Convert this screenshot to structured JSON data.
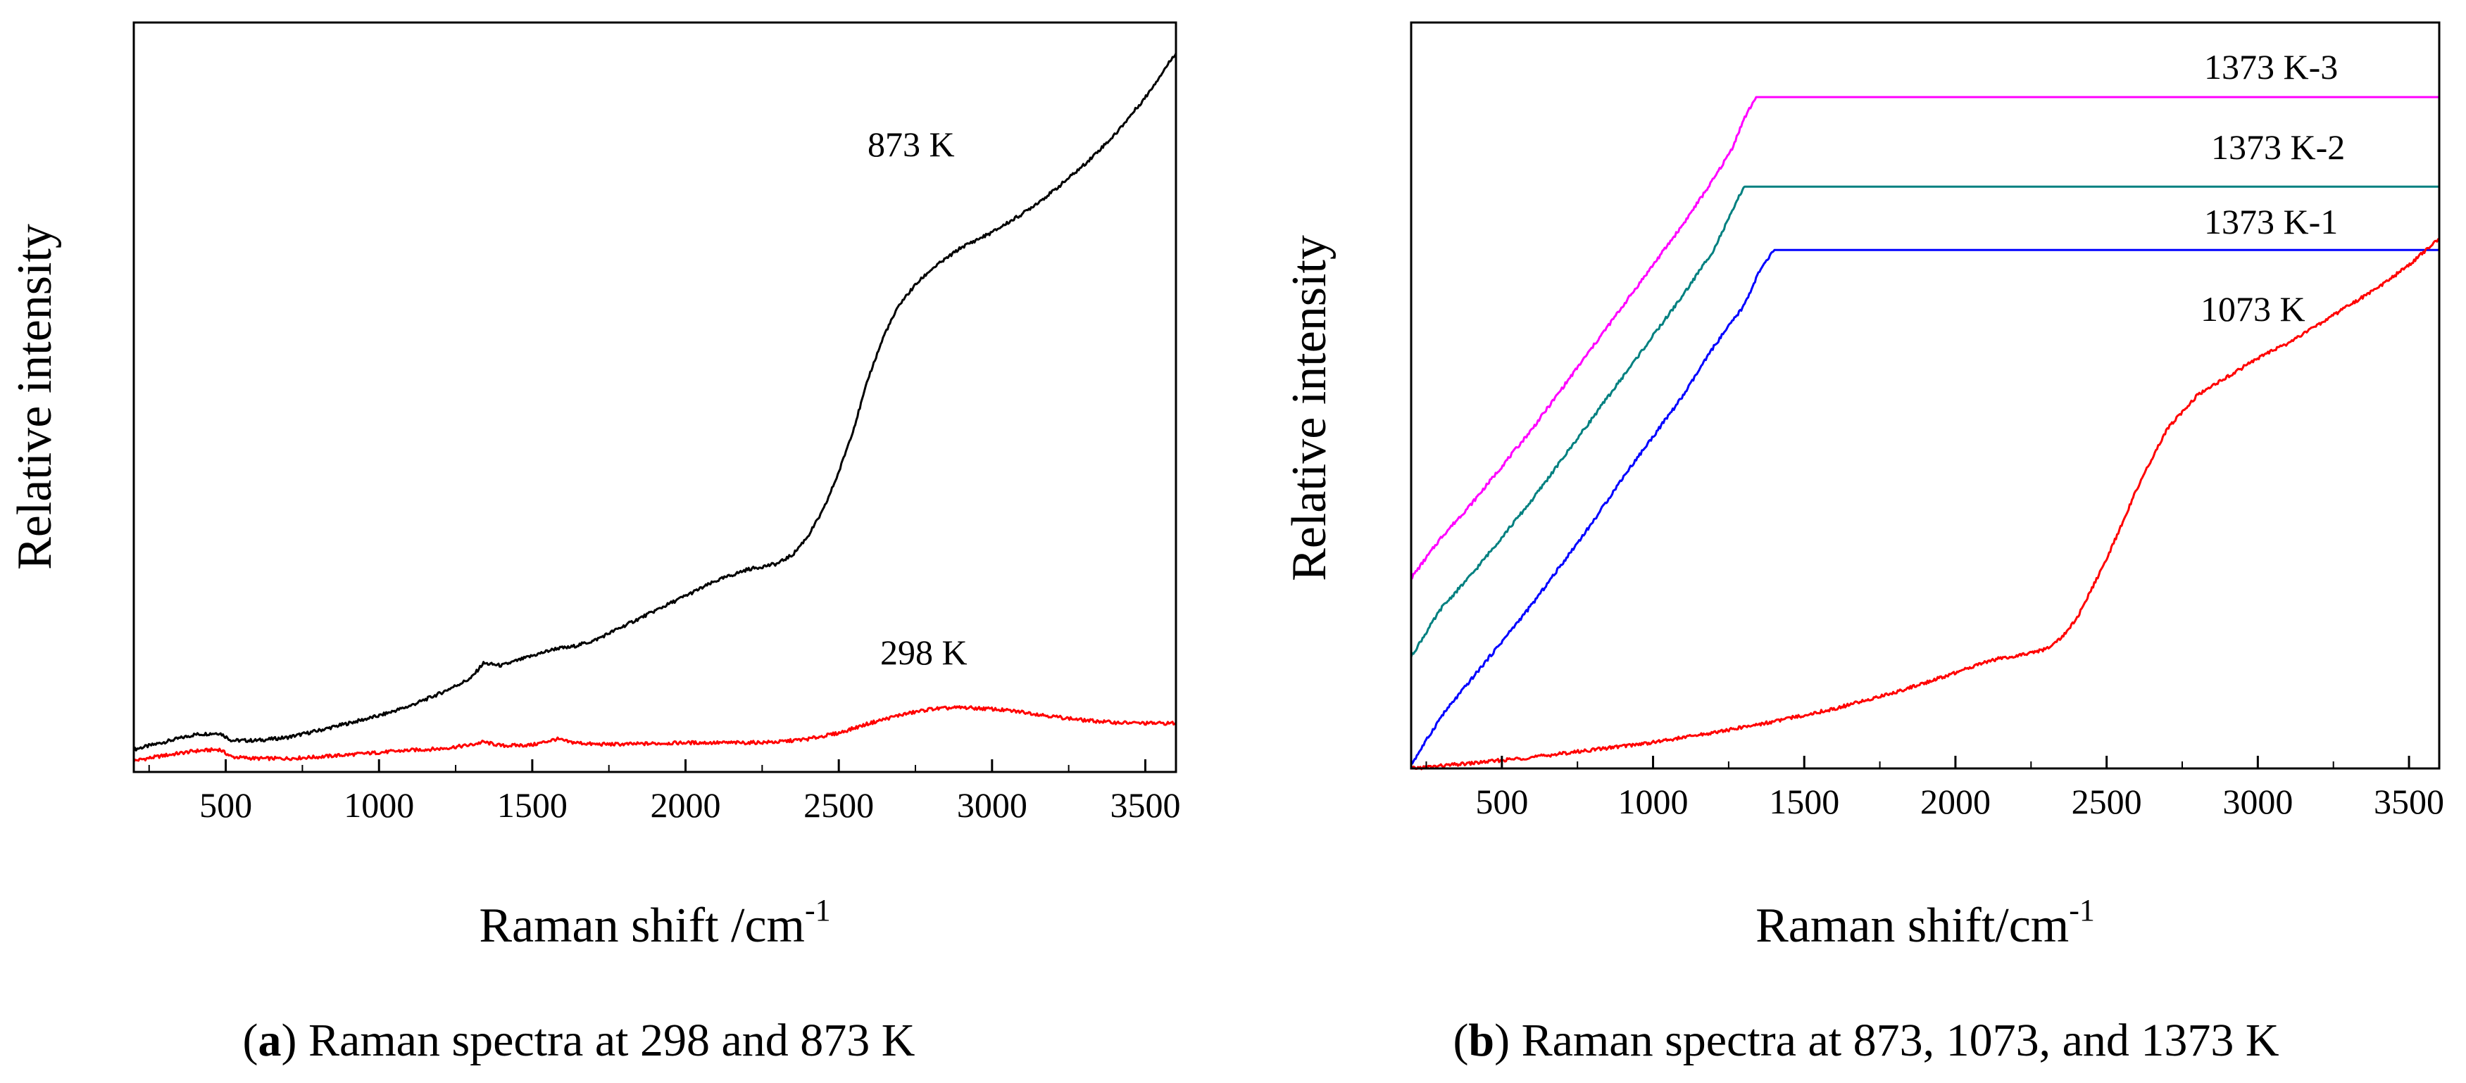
{
  "chart_data": [
    {
      "type": "line",
      "caption": {
        "letter": "a",
        "text": ") Raman spectra at 298 and 873 K"
      },
      "xlabel": "Raman shift /cm",
      "xlabel_sup": "-1",
      "ylabel": "Relative intensity",
      "xlim": [
        200,
        3600
      ],
      "ylim": [
        0,
        100
      ],
      "x_ticks": [
        500,
        1000,
        1500,
        2000,
        2500,
        3000,
        3500
      ],
      "grid": false,
      "y_tick_labels": false,
      "series": [
        {
          "name": "873 K",
          "color": "#000000",
          "x": [
            200,
            300,
            400,
            480,
            520,
            600,
            700,
            800,
            900,
            1000,
            1100,
            1200,
            1300,
            1340,
            1400,
            1500,
            1580,
            1620,
            1700,
            1800,
            1900,
            2000,
            2100,
            2200,
            2300,
            2350,
            2400,
            2450,
            2500,
            2550,
            2600,
            2650,
            2700,
            2750,
            2800,
            2850,
            2900,
            3000,
            3100,
            3200,
            3300,
            3400,
            3500,
            3600
          ],
          "y": [
            3.0,
            4.0,
            5.0,
            5.2,
            4.2,
            4.2,
            4.6,
            5.5,
            6.5,
            7.5,
            8.8,
            10.5,
            12.5,
            14.5,
            14.2,
            15.5,
            16.5,
            16.6,
            17.5,
            19.5,
            21.5,
            23.5,
            25.5,
            27.0,
            27.8,
            29.0,
            31.5,
            35.0,
            40.0,
            46.0,
            53.0,
            58.5,
            62.5,
            65.0,
            67.0,
            68.5,
            70.0,
            72.0,
            74.5,
            77.5,
            81.0,
            85.0,
            90.0,
            96.0
          ]
        },
        {
          "name": "298 K",
          "color": "#ff0000",
          "x": [
            200,
            300,
            400,
            480,
            520,
            600,
            700,
            800,
            900,
            1000,
            1100,
            1200,
            1300,
            1340,
            1400,
            1500,
            1580,
            1620,
            1700,
            1800,
            1900,
            2000,
            2100,
            2200,
            2300,
            2400,
            2500,
            2600,
            2700,
            2800,
            2900,
            3000,
            3100,
            3200,
            3300,
            3400,
            3500,
            3600
          ],
          "y": [
            1.5,
            2.2,
            2.8,
            3.0,
            2.0,
            1.8,
            1.8,
            2.0,
            2.3,
            2.6,
            2.9,
            3.1,
            3.6,
            4.0,
            3.5,
            3.6,
            4.4,
            4.0,
            3.7,
            3.7,
            3.8,
            3.9,
            3.9,
            3.9,
            4.0,
            4.4,
            5.2,
            6.5,
            7.6,
            8.4,
            8.6,
            8.4,
            8.0,
            7.4,
            6.9,
            6.6,
            6.5,
            6.5
          ]
        }
      ]
    },
    {
      "type": "line",
      "caption": {
        "letter": "b",
        "text": ") Raman spectra at 873, 1073, and 1373 K"
      },
      "xlabel": "Raman shift/cm",
      "xlabel_sup": "-1",
      "ylabel": "Relative intensity",
      "xlim": [
        200,
        3600
      ],
      "ylim": [
        0,
        100
      ],
      "x_ticks": [
        500,
        1000,
        1500,
        2000,
        2500,
        3000,
        3500
      ],
      "grid": false,
      "y_tick_labels": false,
      "series": [
        {
          "name": "1373 K-3",
          "color": "#ff00ff",
          "x": [
            200,
            300,
            400,
            500,
            600,
            700,
            800,
            900,
            1000,
            1100,
            1200,
            1260,
            1300,
            1340,
            1400,
            1500,
            2000,
            2500,
            3000,
            3600
          ],
          "y": [
            25.5,
            31.0,
            35.5,
            40.5,
            45.5,
            51.0,
            56.5,
            62.0,
            67.5,
            73.0,
            79.0,
            83.0,
            87.0,
            90.0,
            90.0,
            90.0,
            90.0,
            90.0,
            90.0,
            90.0
          ]
        },
        {
          "name": "1373 K-2",
          "color": "#008080",
          "x": [
            200,
            300,
            400,
            500,
            600,
            700,
            800,
            900,
            1000,
            1100,
            1200,
            1260,
            1300,
            1400,
            1500,
            2000,
            2500,
            3000,
            3600
          ],
          "y": [
            15.0,
            21.5,
            26.0,
            31.0,
            36.0,
            41.5,
            47.0,
            52.5,
            58.0,
            63.5,
            69.5,
            74.5,
            78.0,
            78.0,
            78.0,
            78.0,
            78.0,
            78.0,
            78.0
          ]
        },
        {
          "name": "1373 K-1",
          "color": "#0000ff",
          "x": [
            200,
            300,
            400,
            500,
            600,
            700,
            800,
            900,
            1000,
            1100,
            1200,
            1300,
            1350,
            1400,
            1500,
            2000,
            2500,
            3000,
            3600
          ],
          "y": [
            0.5,
            7.0,
            12.0,
            17.0,
            22.0,
            27.5,
            33.0,
            39.0,
            44.5,
            50.0,
            56.5,
            62.0,
            66.5,
            69.5,
            69.5,
            69.5,
            69.5,
            69.5,
            69.5
          ]
        },
        {
          "name": "1073 K",
          "color": "#ff0000",
          "x": [
            200,
            400,
            600,
            800,
            1000,
            1200,
            1400,
            1600,
            1800,
            2000,
            2100,
            2150,
            2200,
            2300,
            2350,
            2400,
            2500,
            2600,
            2700,
            2800,
            2900,
            3000,
            3100,
            3200,
            3300,
            3400,
            3500,
            3600
          ],
          "y": [
            0.0,
            0.7,
            1.5,
            2.5,
            3.5,
            4.8,
            6.3,
            8.0,
            10.2,
            12.8,
            14.3,
            14.8,
            15.0,
            16.0,
            17.5,
            20.0,
            28.0,
            37.5,
            45.5,
            50.0,
            52.5,
            55.0,
            57.0,
            59.5,
            62.0,
            64.5,
            67.5,
            71.0
          ]
        }
      ]
    }
  ]
}
